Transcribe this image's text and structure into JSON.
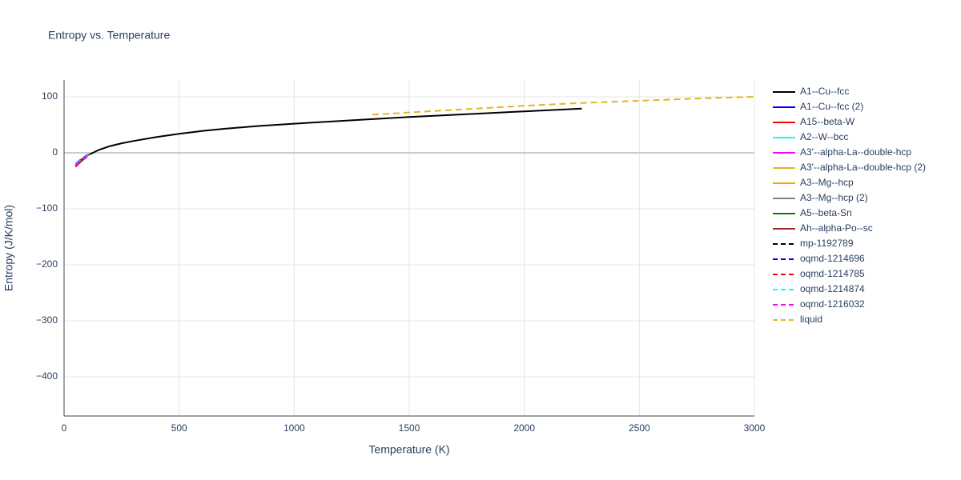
{
  "chart_data": {
    "type": "line",
    "title": "Entropy vs. Temperature",
    "x_label": "Temperature (K)",
    "y_label": "Entropy (J/K/mol)",
    "xlim": [
      0,
      3000
    ],
    "ylim": [
      -470,
      130
    ],
    "xticks": [
      0,
      500,
      1000,
      1500,
      2000,
      2500,
      3000
    ],
    "yticks": [
      {
        "value": -400,
        "label": "−400"
      },
      {
        "value": -300,
        "label": "−300"
      },
      {
        "value": -200,
        "label": "−200"
      },
      {
        "value": -100,
        "label": "−100"
      },
      0,
      100
    ],
    "grid": true,
    "series": [
      {
        "name": "A1--Cu--fcc",
        "color": "#000000",
        "dash": false,
        "x": [
          100,
          150,
          200,
          250,
          300,
          400,
          500,
          600,
          700,
          850,
          1000,
          1250,
          1500,
          1750,
          2000,
          2250
        ],
        "values": [
          -5,
          5,
          12,
          17,
          21,
          28,
          34,
          39,
          43,
          48,
          52,
          58,
          64,
          69,
          74,
          79
        ]
      },
      {
        "name": "A1--Cu--fcc (2)",
        "color": "#0000ff",
        "dash": false,
        "x": [
          50,
          75,
          100
        ],
        "values": [
          -20,
          -12,
          -5
        ]
      },
      {
        "name": "A15--beta-W",
        "color": "#ff0000",
        "dash": false,
        "x": [
          50,
          75,
          100
        ],
        "values": [
          -25,
          -15,
          -7
        ]
      },
      {
        "name": "A2--W--bcc",
        "color": "#00ffff",
        "dash": false,
        "x": [
          50,
          75,
          100
        ],
        "values": [
          -21,
          -13,
          -6
        ]
      },
      {
        "name": "A3'--alpha-La--double-hcp",
        "color": "#ff00ff",
        "dash": false,
        "x": [
          50,
          75,
          100
        ],
        "values": [
          -24,
          -14,
          -6
        ]
      },
      {
        "name": "A3'--alpha-La--double-hcp (2)",
        "color": "#e6b422",
        "dash": false,
        "x": [
          50,
          75,
          100
        ],
        "values": [
          -22,
          -13,
          -6
        ]
      },
      {
        "name": "A3--Mg--hcp",
        "color": "#ffa500",
        "dash": false,
        "x": [
          50,
          75,
          100
        ],
        "values": [
          -22,
          -13,
          -5
        ]
      },
      {
        "name": "A3--Mg--hcp (2)",
        "color": "#808080",
        "dash": false,
        "x": [
          60,
          85,
          110
        ],
        "values": [
          -18,
          -9,
          -2
        ]
      },
      {
        "name": "A5--beta-Sn",
        "color": "#008000",
        "dash": false,
        "x": [
          50,
          75,
          100
        ],
        "values": [
          -21,
          -12,
          -5
        ]
      },
      {
        "name": "Ah--alpha-Po--sc",
        "color": "#a52a2a",
        "dash": false,
        "x": [
          50,
          75,
          100
        ],
        "values": [
          -23,
          -14,
          -6
        ]
      },
      {
        "name": "mp-1192789",
        "color": "#000000",
        "dash": true,
        "x": [
          50,
          75,
          100
        ],
        "values": [
          -21,
          -12,
          -5
        ]
      },
      {
        "name": "oqmd-1214696",
        "color": "#0000ff",
        "dash": true,
        "x": [
          50,
          75,
          100
        ],
        "values": [
          -20,
          -11,
          -4
        ]
      },
      {
        "name": "oqmd-1214785",
        "color": "#ff0000",
        "dash": true,
        "x": [
          50,
          75,
          100
        ],
        "values": [
          -24,
          -14,
          -6
        ]
      },
      {
        "name": "oqmd-1214874",
        "color": "#00ffff",
        "dash": true,
        "x": [
          50,
          75,
          100
        ],
        "values": [
          -21,
          -12,
          -5
        ]
      },
      {
        "name": "oqmd-1216032",
        "color": "#ff00ff",
        "dash": true,
        "x": [
          50,
          75,
          100
        ],
        "values": [
          -23,
          -13,
          -6
        ]
      },
      {
        "name": "liquid",
        "color": "#e6b422",
        "dash": true,
        "x": [
          1340,
          1500,
          1750,
          2000,
          2250,
          2500,
          2750,
          3000
        ],
        "values": [
          68,
          72,
          78,
          84,
          89,
          93,
          97,
          100
        ]
      }
    ]
  }
}
